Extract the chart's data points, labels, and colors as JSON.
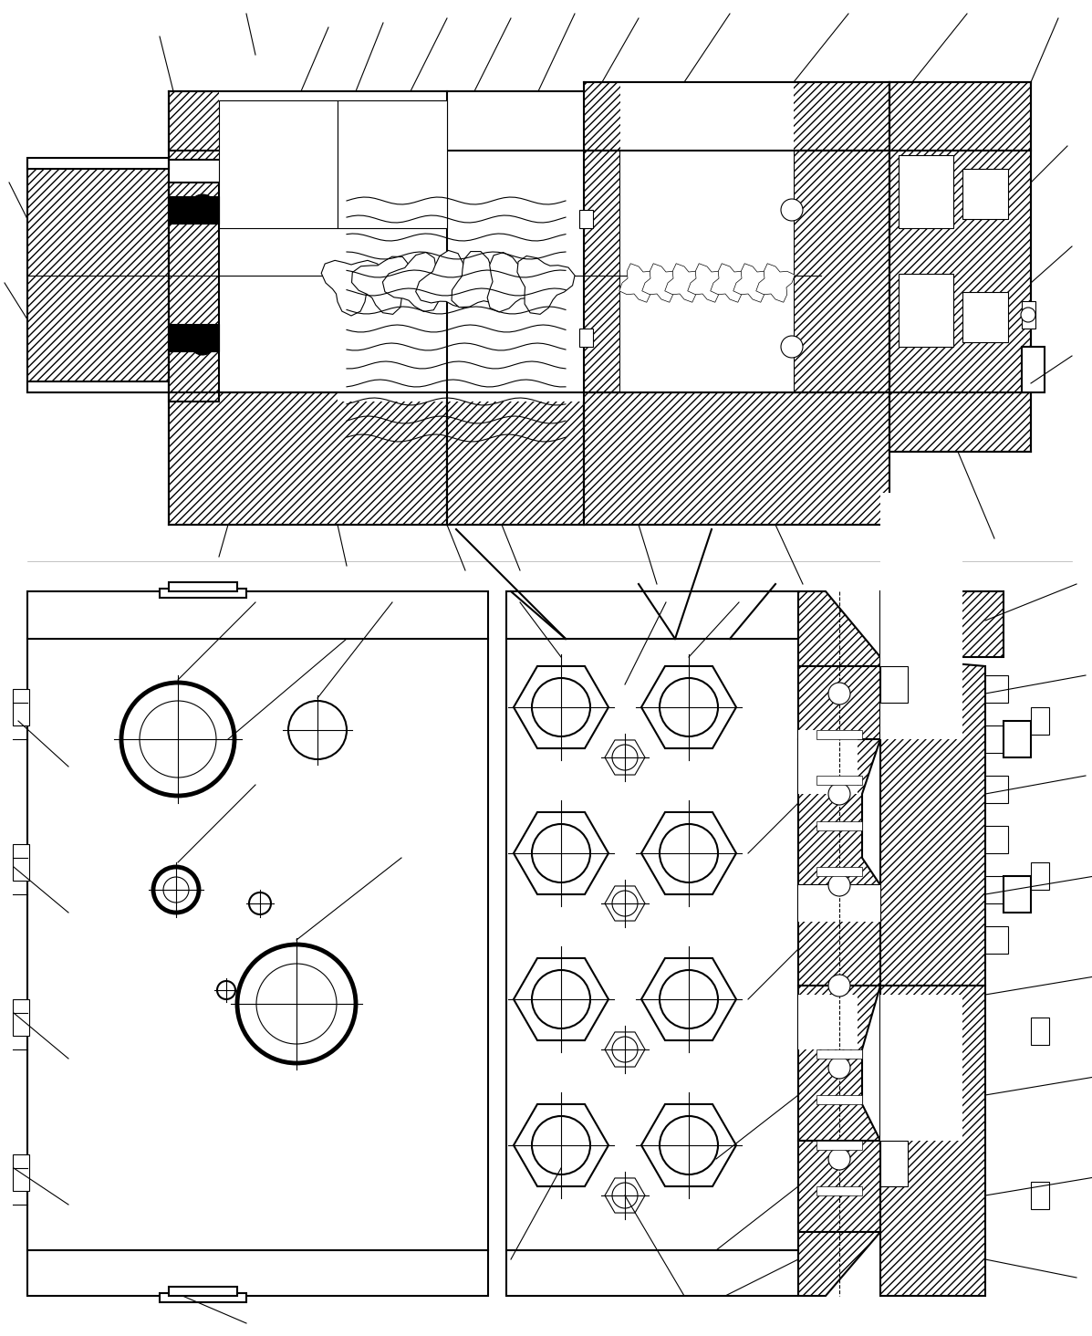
{
  "bg_color": "#ffffff",
  "line_color": "#000000",
  "fig_width": 11.97,
  "fig_height": 14.64,
  "dpi": 100
}
